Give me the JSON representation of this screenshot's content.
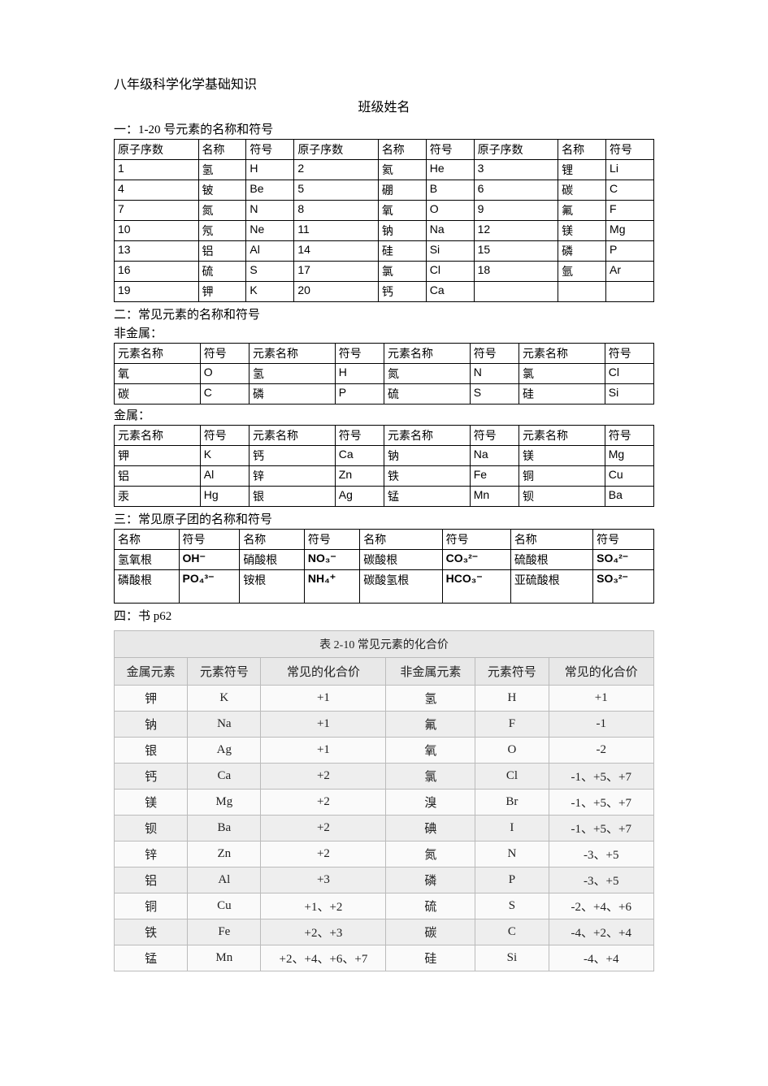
{
  "title": "八年级科学化学基础知识",
  "subtitle": "班级姓名",
  "sections": {
    "s1_label": "一：1-20 号元素的名称和符号",
    "s2_label": "二：常见元素的名称和符号",
    "nonmetal_label": "非金属：",
    "metal_label": "金属：",
    "s3_label": "三：常见原子团的名称和符号",
    "s4_label": "四：书 p62"
  },
  "table1": {
    "head": {
      "c1": "原子序数",
      "c2": "名称",
      "c3": "符号"
    },
    "rows": [
      [
        "1",
        "氢",
        "H",
        "2",
        "氦",
        "He",
        "3",
        "锂",
        "Li"
      ],
      [
        "4",
        "铍",
        "Be",
        "5",
        "硼",
        "B",
        "6",
        "碳",
        "C"
      ],
      [
        "7",
        "氮",
        "N",
        "8",
        "氧",
        "O",
        "9",
        "氟",
        "F"
      ],
      [
        "10",
        "氖",
        "Ne",
        "11",
        "钠",
        "Na",
        "12",
        "镁",
        "Mg"
      ],
      [
        "13",
        "铝",
        "Al",
        "14",
        "硅",
        "Si",
        "15",
        "磷",
        "P"
      ],
      [
        "16",
        "硫",
        "S",
        "17",
        "氯",
        "Cl",
        "18",
        "氩",
        "Ar"
      ],
      [
        "19",
        "钾",
        "K",
        "20",
        "钙",
        "Ca",
        "",
        "",
        ""
      ]
    ]
  },
  "table2a": {
    "head": {
      "c1": "元素名称",
      "c2": "符号"
    },
    "rows": [
      [
        "氧",
        "O",
        "氢",
        "H",
        "氮",
        "N",
        "氯",
        "Cl"
      ],
      [
        "碳",
        "C",
        "磷",
        "P",
        "硫",
        "S",
        "硅",
        "Si"
      ]
    ]
  },
  "table2b": {
    "head": {
      "c1": "元素名称",
      "c2": "符号"
    },
    "rows": [
      [
        "钾",
        "K",
        "钙",
        "Ca",
        "钠",
        "Na",
        "镁",
        "Mg"
      ],
      [
        "铝",
        "Al",
        "锌",
        "Zn",
        "铁",
        "Fe",
        "铜",
        "Cu"
      ],
      [
        "汞",
        "Hg",
        "银",
        "Ag",
        "锰",
        "Mn",
        "钡",
        "Ba"
      ]
    ]
  },
  "table3": {
    "head": {
      "c1": "名称",
      "c2": "符号"
    },
    "rows": [
      {
        "n1": "氢氧根",
        "s1": "OH⁻",
        "n2": "硝酸根",
        "s2": "NO₃⁻",
        "n3": "碳酸根",
        "s3": "CO₃²⁻",
        "n4": "硫酸根",
        "s4": "SO₄²⁻"
      },
      {
        "n1": "磷酸根",
        "s1": "PO₄³⁻",
        "n2": "铵根",
        "s2": "NH₄⁺",
        "n3": "碳酸氢根",
        "s3": "HCO₃⁻",
        "n4": "亚硫酸根",
        "s4": "SO₃²⁻"
      }
    ]
  },
  "valence": {
    "caption": "表 2-10  常见元素的化合价",
    "head": {
      "c1": "金属元素",
      "c2": "元素符号",
      "c3": "常见的化合价",
      "c4": "非金属元素",
      "c5": "元素符号",
      "c6": "常见的化合价"
    },
    "rows": [
      [
        "钾",
        "K",
        "+1",
        "氢",
        "H",
        "+1"
      ],
      [
        "钠",
        "Na",
        "+1",
        "氟",
        "F",
        "-1"
      ],
      [
        "银",
        "Ag",
        "+1",
        "氧",
        "O",
        "-2"
      ],
      [
        "钙",
        "Ca",
        "+2",
        "氯",
        "Cl",
        "-1、+5、+7"
      ],
      [
        "镁",
        "Mg",
        "+2",
        "溴",
        "Br",
        "-1、+5、+7"
      ],
      [
        "钡",
        "Ba",
        "+2",
        "碘",
        "I",
        "-1、+5、+7"
      ],
      [
        "锌",
        "Zn",
        "+2",
        "氮",
        "N",
        "-3、+5"
      ],
      [
        "铝",
        "Al",
        "+3",
        "磷",
        "P",
        "-3、+5"
      ],
      [
        "铜",
        "Cu",
        "+1、+2",
        "硫",
        "S",
        "-2、+4、+6"
      ],
      [
        "铁",
        "Fe",
        "+2、+3",
        "碳",
        "C",
        "-4、+2、+4"
      ],
      [
        "锰",
        "Mn",
        "+2、+4、+6、+7",
        "硅",
        "Si",
        "-4、+4"
      ]
    ],
    "colors": {
      "header_bg": "#e8e8e8",
      "row_odd_bg": "#fafafa",
      "row_even_bg": "#eeeeee",
      "border": "#bbbbbb",
      "text": "#222222"
    }
  }
}
